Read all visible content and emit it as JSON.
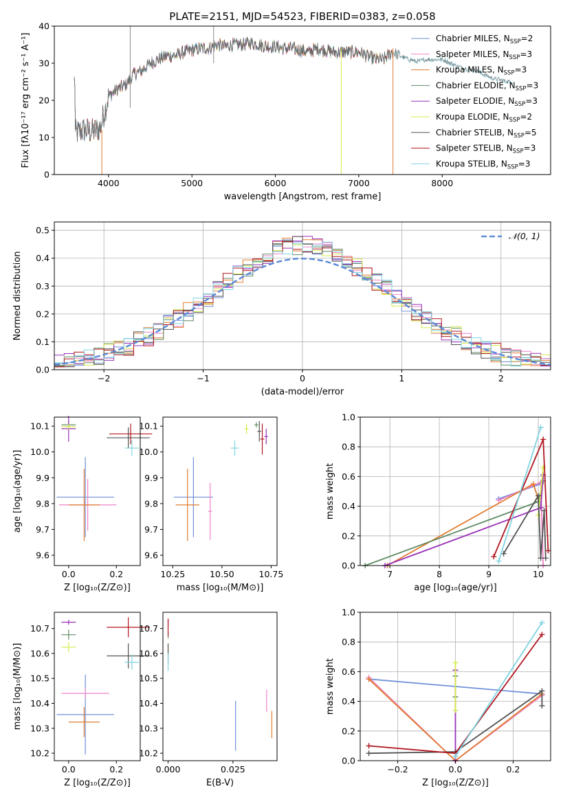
{
  "figure_title": "PLATE=2151, MJD=54523, FIBERID=0383, z=0.058",
  "colors": [
    "#6f8fd9",
    "#ee82c8",
    "#e07b2e",
    "#5e8a63",
    "#9a2fb8",
    "#d6ec4a",
    "#505050",
    "#b0141e",
    "#7fd3e0"
  ],
  "chart_data": [
    {
      "id": "spectrum",
      "type": "line",
      "title": "PLATE=2151, MJD=54523, FIBERID=0383, z=0.058",
      "xlabel": "wavelength [Angstrom, rest frame]",
      "ylabel": "Flux [fλ10⁻¹⁷ erg cm⁻² s⁻¹ A⁻¹]",
      "xlim": [
        3350,
        9300
      ],
      "ylim": [
        0,
        40
      ],
      "xticks": [
        4000,
        5000,
        6000,
        7000,
        8000
      ],
      "yticks": [
        0,
        10,
        20,
        30,
        40
      ],
      "legend_position": "right",
      "legend": [
        {
          "label": "Chabrier MILES, N",
          "sub": "SSP",
          "n": "=2"
        },
        {
          "label": "Salpeter MILES, N",
          "sub": "SSP",
          "n": "=3"
        },
        {
          "label": "Kroupa MILES, N",
          "sub": "SSP",
          "n": "=3"
        },
        {
          "label": "Chabrier ELODIE, N",
          "sub": "SSP",
          "n": "=3"
        },
        {
          "label": "Salpeter ELODIE, N",
          "sub": "SSP",
          "n": "=3"
        },
        {
          "label": "Kroupa ELODIE, N",
          "sub": "SSP",
          "n": "=2"
        },
        {
          "label": "Chabrier STELIB, N",
          "sub": "SSP",
          "n": "=5"
        },
        {
          "label": "Salpeter STELIB, N",
          "sub": "SSP",
          "n": "=3"
        },
        {
          "label": "Kroupa STELIB, N",
          "sub": "SSP",
          "n": "=3"
        }
      ],
      "continuum": [
        [
          3600,
          11
        ],
        [
          3700,
          12
        ],
        [
          3800,
          11.5
        ],
        [
          3900,
          12.5
        ],
        [
          4000,
          21
        ],
        [
          4100,
          23
        ],
        [
          4200,
          24
        ],
        [
          4300,
          27
        ],
        [
          4400,
          28
        ],
        [
          4500,
          30
        ],
        [
          4600,
          31
        ],
        [
          4700,
          32
        ],
        [
          4800,
          32
        ],
        [
          4900,
          33
        ],
        [
          5000,
          33.5
        ],
        [
          5100,
          34
        ],
        [
          5200,
          34
        ],
        [
          5300,
          35
        ],
        [
          5400,
          34.5
        ],
        [
          5500,
          35
        ],
        [
          5600,
          35
        ],
        [
          5700,
          35.5
        ],
        [
          5800,
          35
        ],
        [
          5900,
          34.5
        ],
        [
          6000,
          34.5
        ],
        [
          6100,
          34
        ],
        [
          6200,
          34
        ],
        [
          6300,
          33.5
        ],
        [
          6400,
          33
        ],
        [
          6500,
          34
        ],
        [
          6600,
          33.5
        ],
        [
          6700,
          33
        ],
        [
          6800,
          33
        ],
        [
          6900,
          33
        ],
        [
          7000,
          33
        ],
        [
          7100,
          32
        ],
        [
          7200,
          31
        ],
        [
          7300,
          31
        ],
        [
          7400,
          33
        ],
        [
          7500,
          32
        ],
        [
          7600,
          31
        ],
        [
          7700,
          30.5
        ],
        [
          7800,
          31
        ],
        [
          7900,
          31
        ],
        [
          8000,
          31
        ],
        [
          8200,
          29
        ],
        [
          8400,
          28
        ],
        [
          8600,
          26
        ],
        [
          8800,
          25
        ]
      ],
      "spike_lines": [
        {
          "x": 3920,
          "ymin": 0,
          "ymax": 12,
          "color": "#e07b2e"
        },
        {
          "x": 4260,
          "ymin": 18,
          "ymax": 40,
          "color": "#888888"
        },
        {
          "x": 5260,
          "ymin": 30,
          "ymax": 40,
          "color": "#888888"
        },
        {
          "x": 6790,
          "ymin": 0,
          "ymax": 34,
          "color": "#d6ec4a"
        },
        {
          "x": 7410,
          "ymin": 0,
          "ymax": 34,
          "color": "#e07b2e"
        }
      ]
    },
    {
      "id": "residuals",
      "type": "step",
      "xlabel": "(data-model)/error",
      "ylabel": "Normed distribution",
      "xlim": [
        -2.5,
        2.5
      ],
      "ylim": [
        0,
        0.53
      ],
      "xticks": [
        -2,
        -1,
        0,
        1,
        2
      ],
      "xtick_labels": [
        "−2",
        "−1",
        "0",
        "1",
        "2"
      ],
      "yticks": [
        0,
        0.1,
        0.2,
        0.3,
        0.4,
        0.5
      ],
      "ytick_labels": [
        "0.0",
        "0.1",
        "0.2",
        "0.3",
        "0.4",
        "0.5"
      ],
      "grid": true,
      "legend_position": "top-right",
      "reference_label": "𝒩(0, 1)",
      "bin_width": 0.1
    },
    {
      "id": "age-vs-z",
      "type": "errorbar",
      "xlabel": "Z [log₁₀(Z/Z⊙)]",
      "ylabel": "age  [log₁₀(age/yr)]",
      "xlim": [
        -0.06,
        0.3
      ],
      "ylim": [
        9.56,
        10.135
      ],
      "xticks": [
        0.0,
        0.2
      ],
      "xtick_labels": [
        "0.0",
        "0.2"
      ],
      "yticks": [
        9.6,
        9.7,
        9.8,
        9.9,
        10.0,
        10.1
      ],
      "ytick_labels": [
        "9.6",
        "9.7",
        "9.8",
        "9.9",
        "10.0",
        "10.1"
      ],
      "points": [
        {
          "x": 0.07,
          "xerr": 0.12,
          "y": 9.825,
          "yerr": 0.155,
          "color": 0
        },
        {
          "x": 0.08,
          "xerr": 0.12,
          "y": 9.795,
          "yerr": 0.1,
          "color": 1
        },
        {
          "x": 0.065,
          "xerr": 0.065,
          "y": 9.795,
          "yerr": 0.14,
          "color": 2
        },
        {
          "x": 0.0,
          "xerr": 0.03,
          "y": 10.105,
          "yerr": 0.015,
          "color": 3
        },
        {
          "x": 0.0,
          "xerr": 0.03,
          "y": 10.09,
          "yerr": 0.05,
          "color": 4
        },
        {
          "x": 0.0,
          "xerr": 0.03,
          "y": 10.098,
          "yerr": 0.01,
          "color": 5
        },
        {
          "x": 0.25,
          "xerr": 0.09,
          "y": 10.055,
          "yerr": 0.04,
          "color": 6
        },
        {
          "x": 0.26,
          "xerr": 0.09,
          "y": 10.07,
          "yerr": 0.04,
          "color": 7
        },
        {
          "x": 0.265,
          "xerr": 0.03,
          "y": 10.015,
          "yerr": 0.03,
          "color": 8
        }
      ]
    },
    {
      "id": "age-vs-mass",
      "type": "errorbar",
      "xlabel": "mass [log₁₀(M/M⊙)]",
      "ylabel": "",
      "xlim": [
        10.2,
        10.78
      ],
      "ylim": [
        9.56,
        10.135
      ],
      "xticks": [
        10.25,
        10.5,
        10.75
      ],
      "xtick_labels": [
        "10.25",
        "10.50",
        "10.75"
      ],
      "yticks": [
        9.6,
        9.7,
        9.8,
        9.9,
        10.0,
        10.1
      ],
      "ytick_labels": [
        "9.6",
        "9.7",
        "9.8",
        "9.9",
        "10.0",
        "10.1"
      ],
      "points": [
        {
          "x": 10.355,
          "xerr": 0.1,
          "y": 9.825,
          "yerr": 0.155,
          "color": 0
        },
        {
          "x": 10.44,
          "xerr": 0.01,
          "y": 9.77,
          "yerr": 0.11,
          "color": 1
        },
        {
          "x": 10.325,
          "xerr": 0.06,
          "y": 9.795,
          "yerr": 0.14,
          "color": 2
        },
        {
          "x": 10.675,
          "xerr": 0.01,
          "y": 10.105,
          "yerr": 0.01,
          "color": 3
        },
        {
          "x": 10.725,
          "xerr": 0.01,
          "y": 10.06,
          "yerr": 0.03,
          "color": 4
        },
        {
          "x": 10.625,
          "xerr": 0.01,
          "y": 10.09,
          "yerr": 0.02,
          "color": 5
        },
        {
          "x": 10.69,
          "xerr": 0.01,
          "y": 10.08,
          "yerr": 0.04,
          "color": 6
        },
        {
          "x": 10.705,
          "xerr": 0.01,
          "y": 10.05,
          "yerr": 0.06,
          "color": 7
        },
        {
          "x": 10.565,
          "xerr": 0.02,
          "y": 10.015,
          "yerr": 0.03,
          "color": 8
        }
      ]
    },
    {
      "id": "massweight-vs-age",
      "type": "line",
      "xlabel": "age  [log₁₀(age/yr)]",
      "ylabel": "mass weight",
      "xlim": [
        6.4,
        10.25
      ],
      "ylim": [
        0,
        1
      ],
      "xticks": [
        7,
        8,
        9,
        10
      ],
      "xtick_labels": [
        "7",
        "8",
        "9",
        "10"
      ],
      "yticks": [
        0,
        0.2,
        0.4,
        0.6,
        0.8,
        1.0
      ],
      "ytick_labels": [
        "0.0",
        "0.2",
        "0.4",
        "0.6",
        "0.8",
        "1.0"
      ],
      "grid": true,
      "series": [
        {
          "color": 0,
          "points": [
            [
              9.2,
              0.45
            ],
            [
              10.05,
              0.55
            ]
          ]
        },
        {
          "color": 1,
          "points": [
            [
              9.2,
              0.44
            ],
            [
              10.05,
              0.56
            ],
            [
              10.1,
              0.0
            ]
          ]
        },
        {
          "color": 2,
          "points": [
            [
              6.95,
              0.0
            ],
            [
              9.9,
              0.55
            ],
            [
              10.0,
              0.45
            ]
          ]
        },
        {
          "color": 3,
          "points": [
            [
              6.5,
              0.0
            ],
            [
              10.0,
              0.43
            ],
            [
              10.1,
              0.57
            ]
          ]
        },
        {
          "color": 4,
          "points": [
            [
              6.9,
              0.0
            ],
            [
              10.05,
              0.39
            ],
            [
              10.1,
              0.61
            ]
          ]
        },
        {
          "color": 5,
          "points": [
            [
              10.0,
              0.34
            ],
            [
              10.1,
              0.66
            ]
          ]
        },
        {
          "color": 6,
          "points": [
            [
              9.3,
              0.08
            ],
            [
              10.0,
              0.47
            ],
            [
              10.05,
              0.05
            ],
            [
              10.12,
              0.37
            ],
            [
              10.15,
              0.05
            ]
          ]
        },
        {
          "color": 7,
          "points": [
            [
              9.1,
              0.06
            ],
            [
              10.1,
              0.85
            ],
            [
              10.2,
              0.1
            ]
          ]
        },
        {
          "color": 8,
          "points": [
            [
              9.2,
              0.03
            ],
            [
              10.05,
              0.93
            ]
          ]
        }
      ]
    },
    {
      "id": "mass-vs-z",
      "type": "errorbar",
      "xlabel": "Z [log₁₀(Z/Z⊙)]",
      "ylabel": "mass [log₁₀(M/M⊙)]",
      "xlim": [
        -0.06,
        0.3
      ],
      "ylim": [
        10.17,
        10.765
      ],
      "xticks": [
        0.0,
        0.2
      ],
      "xtick_labels": [
        "0.0",
        "0.2"
      ],
      "yticks": [
        10.2,
        10.3,
        10.4,
        10.5,
        10.6,
        10.7
      ],
      "ytick_labels": [
        "10.2",
        "10.3",
        "10.4",
        "10.5",
        "10.6",
        "10.7"
      ],
      "points": [
        {
          "x": 0.07,
          "xerr": 0.12,
          "y": 10.355,
          "yerr": 0.16,
          "color": 0
        },
        {
          "x": 0.07,
          "xerr": 0.1,
          "y": 10.44,
          "yerr": 0.02,
          "color": 1
        },
        {
          "x": 0.065,
          "xerr": 0.065,
          "y": 10.325,
          "yerr": 0.06,
          "color": 2
        },
        {
          "x": 0.0,
          "xerr": 0.03,
          "y": 10.675,
          "yerr": 0.02,
          "color": 3
        },
        {
          "x": 0.0,
          "xerr": 0.03,
          "y": 10.725,
          "yerr": 0.01,
          "color": 4
        },
        {
          "x": 0.0,
          "xerr": 0.03,
          "y": 10.625,
          "yerr": 0.02,
          "color": 5
        },
        {
          "x": 0.25,
          "xerr": 0.09,
          "y": 10.59,
          "yerr": 0.05,
          "color": 6
        },
        {
          "x": 0.25,
          "xerr": 0.09,
          "y": 10.705,
          "yerr": 0.04,
          "color": 7
        },
        {
          "x": 0.265,
          "xerr": 0.03,
          "y": 10.565,
          "yerr": 0.03,
          "color": 8
        }
      ]
    },
    {
      "id": "mass-vs-ebv",
      "type": "errorbar",
      "xlabel": "E(B-V)",
      "ylabel": "",
      "xlim": [
        -0.002,
        0.042
      ],
      "ylim": [
        10.17,
        10.765
      ],
      "xticks": [
        0.0,
        0.025
      ],
      "xtick_labels": [
        "0.000",
        "0.025"
      ],
      "yticks": [
        10.2,
        10.3,
        10.4,
        10.5,
        10.6,
        10.7
      ],
      "ytick_labels": [
        "10.2",
        "10.3",
        "10.4",
        "10.5",
        "10.6",
        "10.7"
      ],
      "points": [
        {
          "x": 0.026,
          "xerr": 0,
          "y": 10.31,
          "yerr": 0.1,
          "color": 0
        },
        {
          "x": 0.038,
          "xerr": 0,
          "y": 10.41,
          "yerr": 0.045,
          "color": 1
        },
        {
          "x": 0.04,
          "xerr": 0,
          "y": 10.315,
          "yerr": 0.055,
          "color": 2
        },
        {
          "x": 0.0,
          "xerr": 0,
          "y": 10.675,
          "yerr": 0.015,
          "color": 3
        },
        {
          "x": 0.0,
          "xerr": 0,
          "y": 10.72,
          "yerr": 0.015,
          "color": 4
        },
        {
          "x": 0.0,
          "xerr": 0,
          "y": 10.625,
          "yerr": 0.015,
          "color": 5
        },
        {
          "x": 0.0,
          "xerr": 0,
          "y": 10.6,
          "yerr": 0.04,
          "color": 6
        },
        {
          "x": 0.0,
          "xerr": 0,
          "y": 10.705,
          "yerr": 0.035,
          "color": 7
        },
        {
          "x": 0.0,
          "xerr": 0,
          "y": 10.565,
          "yerr": 0.035,
          "color": 8
        }
      ]
    },
    {
      "id": "massweight-vs-z",
      "type": "line",
      "xlabel": "Z [log₁₀(Z/Z⊙)]",
      "ylabel": "mass weight",
      "xlim": [
        -0.33,
        0.33
      ],
      "ylim": [
        0,
        1
      ],
      "xticks": [
        -0.2,
        0.0,
        0.2
      ],
      "xtick_labels": [
        "−0.2",
        "0.0",
        "0.2"
      ],
      "yticks": [
        0,
        0.2,
        0.4,
        0.6,
        0.8,
        1.0
      ],
      "ytick_labels": [
        "0.0",
        "0.2",
        "0.4",
        "0.6",
        "0.8",
        "1.0"
      ],
      "grid": true,
      "series": [
        {
          "color": 0,
          "points": [
            [
              -0.3,
              0.55
            ],
            [
              0.3,
              0.45
            ]
          ]
        },
        {
          "color": 1,
          "points": [
            [
              -0.3,
              0.56
            ],
            [
              0.0,
              0.0
            ],
            [
              0.3,
              0.44
            ]
          ]
        },
        {
          "color": 2,
          "points": [
            [
              -0.3,
              0.55
            ],
            [
              0.0,
              0.0
            ],
            [
              0.3,
              0.45
            ]
          ]
        },
        {
          "color": 3,
          "points": [
            [
              0.0,
              0.57
            ],
            [
              0.0,
              0.43
            ]
          ]
        },
        {
          "color": 4,
          "points": [
            [
              0.0,
              0.61
            ],
            [
              0.0,
              0.0
            ]
          ]
        },
        {
          "color": 5,
          "points": [
            [
              0.0,
              0.66
            ],
            [
              0.0,
              0.34
            ]
          ]
        },
        {
          "color": 6,
          "points": [
            [
              -0.3,
              0.05
            ],
            [
              0.0,
              0.06
            ],
            [
              0.3,
              0.47
            ],
            [
              0.3,
              0.37
            ]
          ]
        },
        {
          "color": 7,
          "points": [
            [
              -0.3,
              0.1
            ],
            [
              0.0,
              0.05
            ],
            [
              0.3,
              0.85
            ]
          ]
        },
        {
          "color": 8,
          "points": [
            [
              0.0,
              0.03
            ],
            [
              0.3,
              0.93
            ]
          ]
        }
      ]
    }
  ]
}
